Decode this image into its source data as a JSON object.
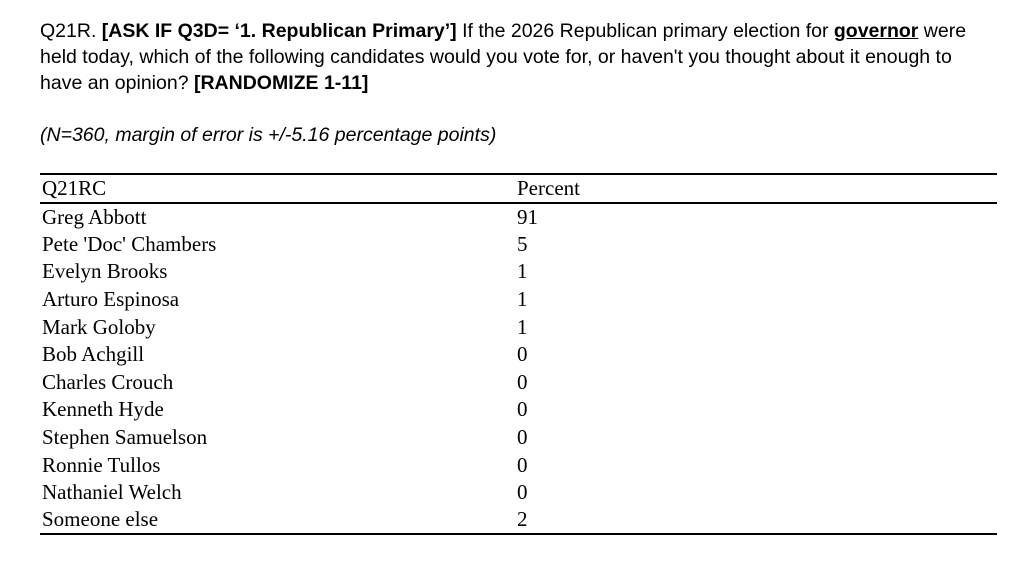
{
  "question": {
    "number": "Q21R. ",
    "ask_if_instruction": "[ASK IF Q3D= ‘1. Republican Primary’]",
    "body_part_1": " If the 2026 Republican primary election for ",
    "emphasized_word": "governor",
    "body_part_2": " were held today, which of the following candidates would you vote for, or haven't you thought about it enough to have an opinion? ",
    "randomize_instruction": "[RANDOMIZE 1-11]"
  },
  "note": "(N=360, margin of error is +/-5.16 percentage points)",
  "table": {
    "columns": [
      "Q21RC",
      "Percent"
    ],
    "rows": [
      {
        "candidate": "Greg Abbott",
        "percent": "91"
      },
      {
        "candidate": "Pete 'Doc' Chambers",
        "percent": "5"
      },
      {
        "candidate": "Evelyn Brooks",
        "percent": "1"
      },
      {
        "candidate": "Arturo Espinosa",
        "percent": "1"
      },
      {
        "candidate": "Mark Goloby",
        "percent": "1"
      },
      {
        "candidate": "Bob Achgill",
        "percent": "0"
      },
      {
        "candidate": "Charles Crouch",
        "percent": "0"
      },
      {
        "candidate": "Kenneth Hyde",
        "percent": "0"
      },
      {
        "candidate": "Stephen Samuelson",
        "percent": "0"
      },
      {
        "candidate": "Ronnie Tullos",
        "percent": "0"
      },
      {
        "candidate": "Nathaniel Welch",
        "percent": "0"
      },
      {
        "candidate": "Someone else",
        "percent": "2"
      }
    ]
  },
  "chart_data": {
    "type": "table",
    "title": "Q21RC",
    "categories": [
      "Greg Abbott",
      "Pete 'Doc' Chambers",
      "Evelyn Brooks",
      "Arturo Espinosa",
      "Mark Goloby",
      "Bob Achgill",
      "Charles Crouch",
      "Kenneth Hyde",
      "Stephen Samuelson",
      "Ronnie Tullos",
      "Nathaniel Welch",
      "Someone else"
    ],
    "values": [
      91,
      5,
      1,
      1,
      1,
      0,
      0,
      0,
      0,
      0,
      0,
      2
    ],
    "ylabel": "Percent"
  }
}
